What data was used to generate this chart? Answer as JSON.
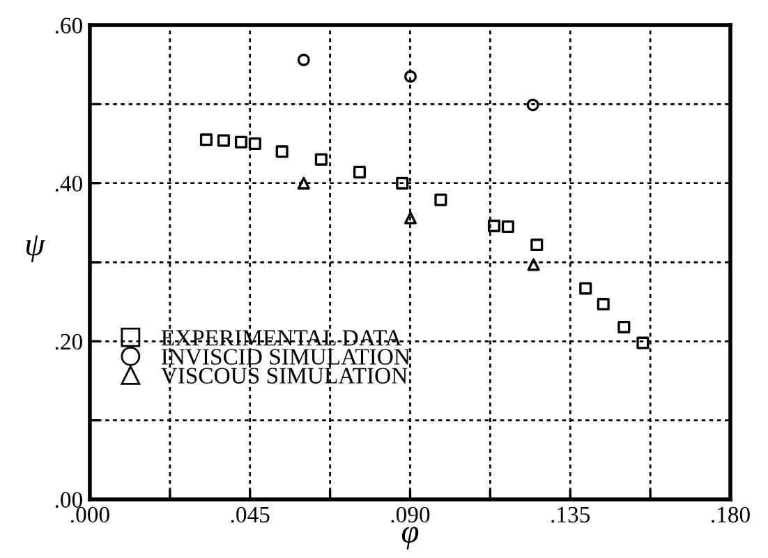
{
  "chart_data": {
    "type": "scatter",
    "xlabel": "φ",
    "ylabel": "ψ",
    "series": [
      {
        "name": "EXPERIMENTAL DATA",
        "color": "#000000",
        "marker": "square",
        "x": [
          0.0327,
          0.0376,
          0.0425,
          0.0464,
          0.054,
          0.065,
          0.0758,
          0.0878,
          0.0986,
          0.1136,
          0.1175,
          0.1256,
          0.1393,
          0.1443,
          0.1501,
          0.1554
        ],
        "values": [
          0.455,
          0.454,
          0.452,
          0.45,
          0.44,
          0.43,
          0.414,
          0.4,
          0.379,
          0.346,
          0.345,
          0.322,
          0.267,
          0.247,
          0.218,
          0.198
        ]
      },
      {
        "name": "INVISCID SIMULATION",
        "color": "#000000",
        "marker": "circle",
        "x": [
          0.0601,
          0.0901,
          0.1245
        ],
        "values": [
          0.556,
          0.535,
          0.499
        ]
      },
      {
        "name": "VISCOUS SIMULATION",
        "color": "#000000",
        "marker": "triangle",
        "x": [
          0.0601,
          0.0901,
          0.1247
        ],
        "values": [
          0.4,
          0.356,
          0.297
        ]
      }
    ],
    "xlim": [
      0,
      0.18
    ],
    "ylim": [
      0,
      0.6
    ],
    "xticks": [
      {
        "value": 0,
        "label": ".000"
      },
      {
        "value": 0.0225,
        "label": null
      },
      {
        "value": 0.045,
        "label": ".045"
      },
      {
        "value": 0.0675,
        "label": null
      },
      {
        "value": 0.09,
        "label": ".090"
      },
      {
        "value": 0.1125,
        "label": null
      },
      {
        "value": 0.135,
        "label": ".135"
      },
      {
        "value": 0.1575,
        "label": null
      },
      {
        "value": 0.18,
        "label": ".180"
      }
    ],
    "yticks": [
      {
        "value": 0,
        "label": ".00"
      },
      {
        "value": 0.1,
        "label": null
      },
      {
        "value": 0.2,
        "label": ".20"
      },
      {
        "value": 0.3,
        "label": null
      },
      {
        "value": 0.4,
        "label": ".40"
      },
      {
        "value": 0.5,
        "label": null
      },
      {
        "value": 0.6,
        "label": ".60"
      }
    ],
    "grid": true,
    "legend": "bottom left"
  }
}
